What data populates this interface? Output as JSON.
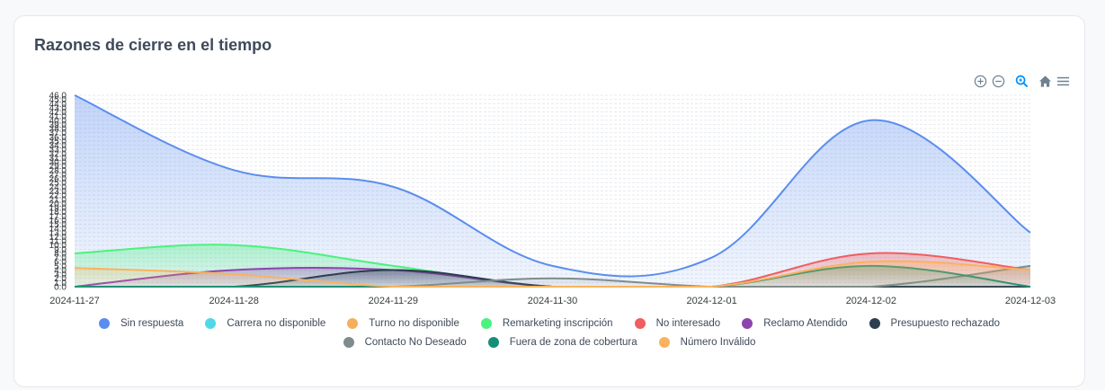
{
  "card": {
    "title": "Razones de cierre en el tiempo"
  },
  "toolbar": {
    "icons": [
      "zoom-in-icon",
      "zoom-out-icon",
      "zoom-select-icon",
      "home-icon",
      "menu-icon"
    ],
    "active_color": "#008ffb",
    "idle_color": "#6e8192"
  },
  "chart_data": {
    "type": "area",
    "title": "Razones de cierre en el tiempo",
    "xlabel": "",
    "ylabel": "",
    "ylim": [
      0,
      46
    ],
    "grid": true,
    "legend_position": "bottom",
    "categories": [
      "2024-11-27",
      "2024-11-28",
      "2024-11-29",
      "2024-11-30",
      "2024-12-01",
      "2024-12-02",
      "2024-12-03"
    ],
    "y_ticks": [
      "0.0",
      "1.0",
      "2.0",
      "3.0",
      "4.0",
      "5.0",
      "6.0",
      "7.0",
      "8.0",
      "9.0",
      "10.0",
      "11.0",
      "12.0",
      "13.0",
      "14.0",
      "15.0",
      "16.0",
      "17.0",
      "18.0",
      "19.0",
      "20.0",
      "21.0",
      "22.0",
      "23.0",
      "24.0",
      "25.0",
      "26.0",
      "27.0",
      "28.0",
      "29.0",
      "30.0",
      "31.0",
      "32.0",
      "33.0",
      "34.0",
      "35.0",
      "36.0",
      "37.0",
      "38.0",
      "39.0",
      "40.0",
      "41.0",
      "42.0",
      "43.0",
      "44.0",
      "45.0",
      "46.0"
    ],
    "series": [
      {
        "name": "Sin respuesta",
        "color": "#5b8def",
        "values": [
          46,
          28,
          24,
          5,
          7,
          40,
          13
        ]
      },
      {
        "name": "Carrera no disponible",
        "color": "#50d8e8",
        "values": [
          0,
          0,
          0,
          0,
          0,
          0,
          0
        ]
      },
      {
        "name": "Turno no disponible",
        "color": "#f4b05e",
        "values": [
          0,
          0,
          0,
          0,
          0,
          0,
          0
        ]
      },
      {
        "name": "Remarketing inscripción",
        "color": "#4cf27e",
        "values": [
          8,
          10,
          5,
          0,
          0,
          0,
          0
        ]
      },
      {
        "name": "No interesado",
        "color": "#ef5e60",
        "values": [
          0,
          0,
          0,
          0,
          0,
          8,
          4
        ]
      },
      {
        "name": "Reclamo Atendido",
        "color": "#8e44ad",
        "values": [
          0,
          4,
          4,
          0,
          0,
          0,
          0
        ]
      },
      {
        "name": "Presupuesto rechazado",
        "color": "#2c3e50",
        "values": [
          0,
          0,
          4,
          0,
          0,
          0,
          0
        ]
      },
      {
        "name": "Contacto No Deseado",
        "color": "#7f8c8d",
        "values": [
          0,
          0,
          0,
          2,
          0,
          0,
          5
        ]
      },
      {
        "name": "Fuera de zona de cobertura",
        "color": "#148f77",
        "values": [
          0,
          0,
          0,
          0,
          0,
          5,
          0
        ]
      },
      {
        "name": "Número Inválido",
        "color": "#fbb25e",
        "values": [
          4.5,
          3,
          0,
          0,
          0,
          6,
          4
        ]
      }
    ]
  },
  "legend": {
    "row1": [
      "Sin respuesta",
      "Carrera no disponible",
      "Turno no disponible",
      "Remarketing inscripción",
      "No interesado",
      "Reclamo Atendido",
      "Presupuesto rechazado"
    ],
    "row2": [
      "Contacto No Deseado",
      "Fuera de zona de cobertura",
      "Número Inválido"
    ]
  }
}
